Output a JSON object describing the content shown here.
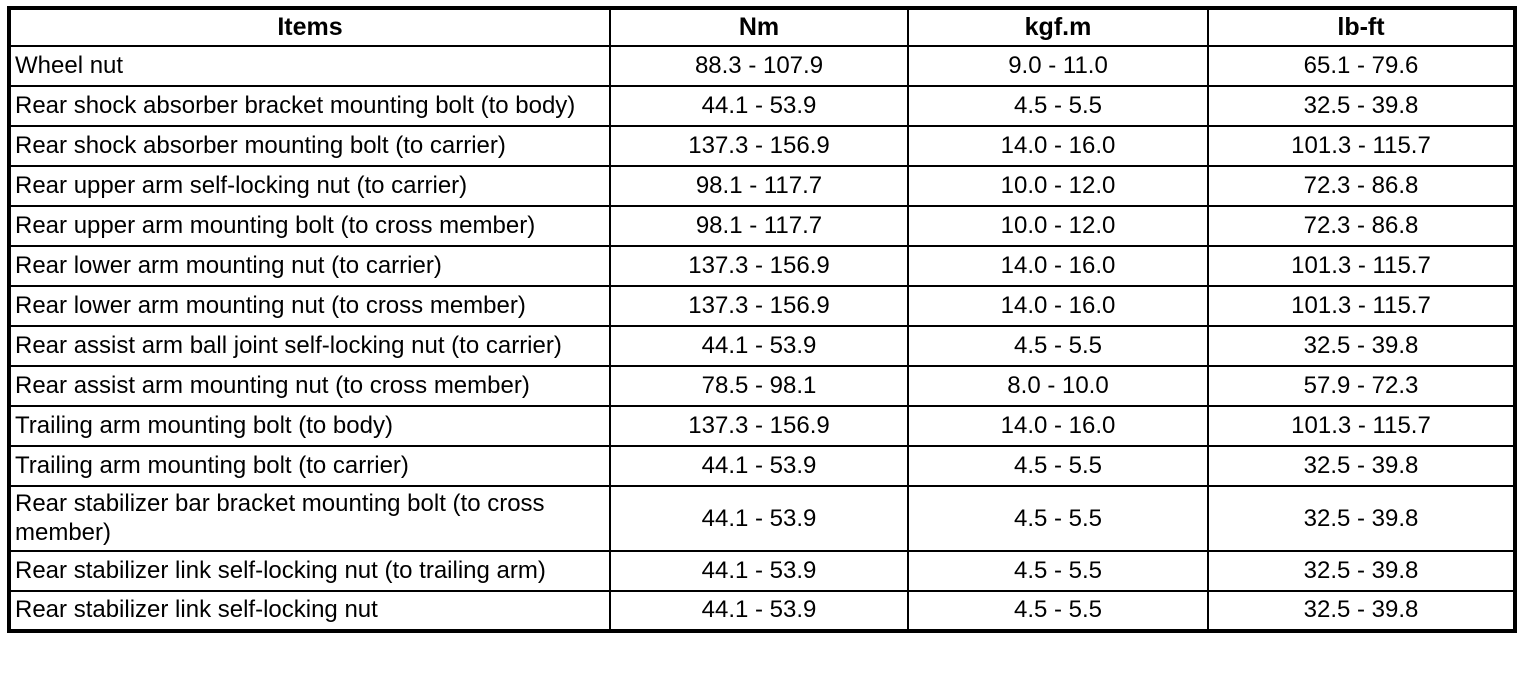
{
  "colors": {
    "background": "#ffffff",
    "text": "#000000",
    "border": "#000000"
  },
  "table": {
    "columns": [
      "Items",
      "Nm",
      "kgf.m",
      "lb-ft"
    ],
    "rows": [
      {
        "item": "Wheel nut",
        "nm": "88.3 - 107.9",
        "kgfm": "9.0 - 11.0",
        "lbft": "65.1 - 79.6"
      },
      {
        "item": "Rear shock absorber bracket mounting bolt (to body)",
        "nm": "44.1 - 53.9",
        "kgfm": "4.5 - 5.5",
        "lbft": "32.5 - 39.8"
      },
      {
        "item": "Rear shock absorber mounting bolt (to carrier)",
        "nm": "137.3 - 156.9",
        "kgfm": "14.0 - 16.0",
        "lbft": "101.3 - 115.7"
      },
      {
        "item": "Rear upper arm self-locking nut (to carrier)",
        "nm": "98.1 - 117.7",
        "kgfm": "10.0 - 12.0",
        "lbft": "72.3 - 86.8"
      },
      {
        "item": "Rear upper arm mounting bolt (to cross member)",
        "nm": "98.1 - 117.7",
        "kgfm": "10.0 - 12.0",
        "lbft": "72.3 - 86.8"
      },
      {
        "item": "Rear lower arm mounting nut (to carrier)",
        "nm": "137.3 - 156.9",
        "kgfm": "14.0 - 16.0",
        "lbft": "101.3 - 115.7"
      },
      {
        "item": "Rear lower arm mounting nut (to cross member)",
        "nm": "137.3 - 156.9",
        "kgfm": "14.0 - 16.0",
        "lbft": "101.3 - 115.7"
      },
      {
        "item": "Rear assist arm ball joint self-locking nut (to carrier)",
        "nm": "44.1 - 53.9",
        "kgfm": "4.5 - 5.5",
        "lbft": "32.5 - 39.8"
      },
      {
        "item": "Rear assist arm mounting nut (to cross member)",
        "nm": "78.5 - 98.1",
        "kgfm": "8.0 - 10.0",
        "lbft": "57.9 - 72.3"
      },
      {
        "item": "Trailing arm mounting bolt (to body)",
        "nm": "137.3 - 156.9",
        "kgfm": "14.0 - 16.0",
        "lbft": "101.3 - 115.7"
      },
      {
        "item": "Trailing arm mounting bolt (to carrier)",
        "nm": "44.1 - 53.9",
        "kgfm": "4.5 - 5.5",
        "lbft": "32.5 - 39.8"
      },
      {
        "item": "Rear stabilizer bar bracket mounting bolt (to cross member)",
        "nm": "44.1 - 53.9",
        "kgfm": "4.5 - 5.5",
        "lbft": "32.5 - 39.8"
      },
      {
        "item": "Rear stabilizer link self-locking nut (to trailing arm)",
        "nm": "44.1 - 53.9",
        "kgfm": "4.5 - 5.5",
        "lbft": "32.5 - 39.8"
      },
      {
        "item": "Rear stabilizer link self-locking nut",
        "nm": "44.1 - 53.9",
        "kgfm": "4.5 - 5.5",
        "lbft": "32.5 - 39.8"
      }
    ]
  }
}
